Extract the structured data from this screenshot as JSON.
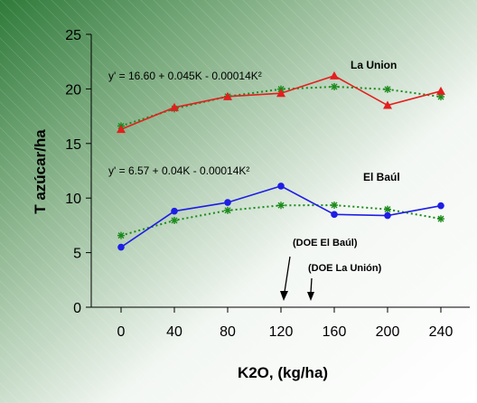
{
  "chart_data": {
    "type": "line",
    "title": "",
    "xlabel": "K2O, (kg/ha)",
    "ylabel": "T azúcar/ha",
    "x": [
      0,
      40,
      80,
      120,
      160,
      200,
      240
    ],
    "x_ticks": [
      "0",
      "40",
      "80",
      "120",
      "160",
      "200",
      "240"
    ],
    "y_ticks": [
      "0",
      "5",
      "10",
      "15",
      "20",
      "25"
    ],
    "xlim": [
      0,
      240
    ],
    "ylim": [
      0,
      25
    ],
    "grid": false,
    "series": [
      {
        "name": "La Union",
        "values": [
          16.3,
          18.3,
          19.3,
          19.6,
          21.2,
          18.5,
          19.8
        ],
        "color": "#e41e1e",
        "marker": "triangle",
        "fit_label": "y' = 16.60 + 0.045K - 0.00014K²",
        "fit_values": [
          16.6,
          18.18,
          19.31,
          19.98,
          20.2,
          19.96,
          19.28
        ],
        "fit_color": "#1a8a1a",
        "fit_marker": "asterisk"
      },
      {
        "name": "El Baúl",
        "values": [
          5.5,
          8.8,
          9.6,
          11.1,
          8.5,
          8.4,
          9.3
        ],
        "color": "#1e1ee4",
        "marker": "circle",
        "fit_label": "y' = 6.57 + 0.04K - 0.00014K²",
        "fit_values": [
          6.57,
          7.95,
          8.87,
          9.33,
          9.35,
          8.97,
          8.1
        ],
        "fit_color": "#1a8a1a",
        "fit_marker": "asterisk"
      }
    ],
    "annotations": [
      {
        "text": "(DOE El Baúl)",
        "x": 120
      },
      {
        "text": "(DOE La Unión)",
        "x": 140
      }
    ]
  }
}
